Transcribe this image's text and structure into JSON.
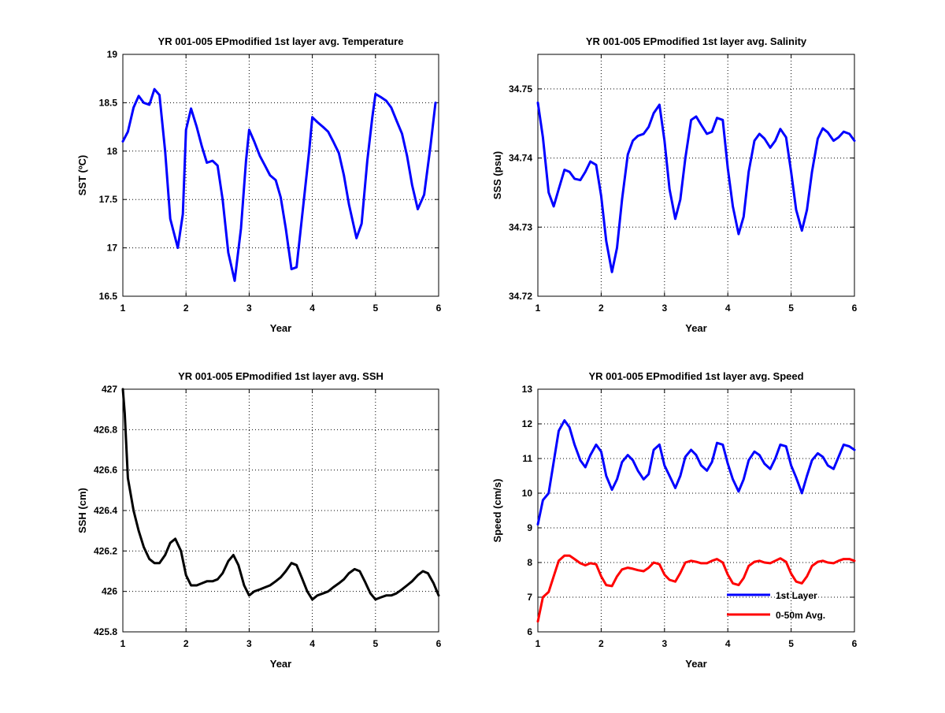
{
  "chart_data": [
    {
      "type": "line",
      "title": "YR 001-005 EPmodified 1st layer avg. Temperature",
      "xlabel": "Year",
      "ylabel": "SST (ºC)",
      "xlim": [
        1,
        6
      ],
      "ylim": [
        16.5,
        19
      ],
      "xticks": [
        "1",
        "2",
        "3",
        "4",
        "5",
        "6"
      ],
      "yticks": [
        "16.5",
        "17",
        "17.5",
        "18",
        "18.5",
        "19"
      ],
      "grid": true,
      "colors": {
        "series": "#0000ff"
      },
      "series": [
        {
          "name": "",
          "x": [
            1.0,
            1.08,
            1.17,
            1.25,
            1.33,
            1.42,
            1.5,
            1.58,
            1.67,
            1.75,
            1.87,
            1.95,
            2.0,
            2.08,
            2.17,
            2.25,
            2.33,
            2.42,
            2.5,
            2.58,
            2.67,
            2.77,
            2.87,
            2.95,
            3.0,
            3.08,
            3.17,
            3.25,
            3.33,
            3.42,
            3.5,
            3.58,
            3.67,
            3.75,
            3.85,
            3.95,
            4.0,
            4.08,
            4.17,
            4.25,
            4.33,
            4.42,
            4.5,
            4.58,
            4.7,
            4.78,
            4.87,
            4.95,
            5.0,
            5.08,
            5.17,
            5.25,
            5.33,
            5.42,
            5.5,
            5.58,
            5.67,
            5.77,
            5.87,
            5.95
          ],
          "values": [
            18.1,
            18.2,
            18.45,
            18.57,
            18.5,
            18.48,
            18.64,
            18.58,
            18.0,
            17.3,
            17.0,
            17.35,
            18.22,
            18.44,
            18.25,
            18.05,
            17.88,
            17.9,
            17.85,
            17.5,
            16.95,
            16.66,
            17.2,
            17.9,
            18.22,
            18.1,
            17.95,
            17.85,
            17.75,
            17.7,
            17.52,
            17.2,
            16.78,
            16.8,
            17.4,
            18.0,
            18.35,
            18.3,
            18.25,
            18.2,
            18.1,
            17.98,
            17.75,
            17.45,
            17.1,
            17.25,
            17.9,
            18.35,
            18.59,
            18.56,
            18.52,
            18.45,
            18.32,
            18.18,
            17.95,
            17.65,
            17.4,
            17.55,
            18.05,
            18.5
          ]
        }
      ]
    },
    {
      "type": "line",
      "title": "YR 001-005 EPmodified 1st layer avg. Salinity",
      "xlabel": "Year",
      "ylabel": "SSS (psu)",
      "xlim": [
        1,
        6
      ],
      "ylim": [
        34.72,
        34.755
      ],
      "xticks": [
        "1",
        "2",
        "3",
        "4",
        "5",
        "6"
      ],
      "yticks": [
        "34.72",
        "34.73",
        "34.74",
        "34.75"
      ],
      "grid": true,
      "colors": {
        "series": "#0000ff"
      },
      "series": [
        {
          "name": "",
          "x": [
            1.0,
            1.08,
            1.17,
            1.25,
            1.33,
            1.42,
            1.5,
            1.58,
            1.67,
            1.75,
            1.83,
            1.92,
            2.0,
            2.08,
            2.17,
            2.25,
            2.33,
            2.42,
            2.5,
            2.58,
            2.67,
            2.75,
            2.83,
            2.92,
            3.0,
            3.08,
            3.17,
            3.25,
            3.33,
            3.42,
            3.5,
            3.58,
            3.67,
            3.75,
            3.83,
            3.92,
            4.0,
            4.08,
            4.17,
            4.25,
            4.33,
            4.42,
            4.5,
            4.58,
            4.67,
            4.75,
            4.83,
            4.92,
            5.0,
            5.08,
            5.17,
            5.25,
            5.33,
            5.42,
            5.5,
            5.58,
            5.67,
            5.75,
            5.83,
            5.92,
            6.0
          ],
          "values": [
            34.748,
            34.743,
            34.735,
            34.733,
            34.7355,
            34.7383,
            34.738,
            34.737,
            34.7368,
            34.738,
            34.7395,
            34.739,
            34.7345,
            34.728,
            34.7235,
            34.727,
            34.734,
            34.7405,
            34.7425,
            34.7432,
            34.7435,
            34.7445,
            34.7465,
            34.7477,
            34.7425,
            34.7355,
            34.7312,
            34.734,
            34.74,
            34.7455,
            34.746,
            34.7448,
            34.7435,
            34.7438,
            34.7458,
            34.7455,
            34.7385,
            34.733,
            34.729,
            34.7315,
            34.738,
            34.7425,
            34.7435,
            34.7428,
            34.7415,
            34.7425,
            34.7442,
            34.743,
            34.738,
            34.7325,
            34.7295,
            34.7325,
            34.738,
            34.7428,
            34.7443,
            34.7437,
            34.7425,
            34.743,
            34.7438,
            34.7435,
            34.7425
          ]
        }
      ]
    },
    {
      "type": "line",
      "title": "YR 001-005 EPmodified 1st layer avg. SSH",
      "xlabel": "Year",
      "ylabel": "SSH (cm)",
      "xlim": [
        1,
        6
      ],
      "ylim": [
        425.8,
        427
      ],
      "xticks": [
        "1",
        "2",
        "3",
        "4",
        "5",
        "6"
      ],
      "yticks": [
        "425.8",
        "426",
        "426.2",
        "426.4",
        "426.6",
        "426.8",
        "427"
      ],
      "grid": true,
      "colors": {
        "series": "#000000"
      },
      "series": [
        {
          "name": "",
          "x": [
            1.0,
            1.03,
            1.08,
            1.17,
            1.25,
            1.33,
            1.42,
            1.5,
            1.58,
            1.67,
            1.75,
            1.83,
            1.92,
            2.0,
            2.08,
            2.17,
            2.25,
            2.33,
            2.42,
            2.5,
            2.58,
            2.67,
            2.75,
            2.83,
            2.92,
            3.0,
            3.08,
            3.17,
            3.25,
            3.33,
            3.42,
            3.5,
            3.58,
            3.67,
            3.75,
            3.83,
            3.92,
            4.0,
            4.08,
            4.17,
            4.25,
            4.33,
            4.42,
            4.5,
            4.58,
            4.67,
            4.75,
            4.83,
            4.92,
            5.0,
            5.08,
            5.17,
            5.25,
            5.33,
            5.42,
            5.5,
            5.58,
            5.67,
            5.75,
            5.83,
            5.92,
            6.0
          ],
          "values": [
            427.0,
            426.88,
            426.56,
            426.4,
            426.3,
            426.22,
            426.16,
            426.14,
            426.14,
            426.18,
            426.24,
            426.26,
            426.2,
            426.08,
            426.03,
            426.03,
            426.04,
            426.05,
            426.05,
            426.06,
            426.09,
            426.15,
            426.18,
            426.13,
            426.03,
            425.98,
            426.0,
            426.01,
            426.02,
            426.03,
            426.05,
            426.07,
            426.1,
            426.14,
            426.13,
            426.07,
            426.0,
            425.96,
            425.98,
            425.99,
            426.0,
            426.02,
            426.04,
            426.06,
            426.09,
            426.11,
            426.1,
            426.05,
            425.99,
            425.96,
            425.97,
            425.98,
            425.98,
            425.99,
            426.01,
            426.03,
            426.05,
            426.08,
            426.1,
            426.09,
            426.04,
            425.98
          ]
        }
      ]
    },
    {
      "type": "line",
      "title": "YR 001-005 EPmodified 1st layer avg. Speed",
      "xlabel": "Year",
      "ylabel": "Speed (cm/s)",
      "xlim": [
        1,
        6
      ],
      "ylim": [
        6,
        13
      ],
      "xticks": [
        "1",
        "2",
        "3",
        "4",
        "5",
        "6"
      ],
      "yticks": [
        "6",
        "7",
        "8",
        "9",
        "10",
        "11",
        "12",
        "13"
      ],
      "grid": true,
      "legend": {
        "position": "bottom-right"
      },
      "series": [
        {
          "name": "1st Layer",
          "color": "#0000ff",
          "x": [
            1.0,
            1.08,
            1.17,
            1.25,
            1.33,
            1.42,
            1.5,
            1.58,
            1.67,
            1.75,
            1.83,
            1.92,
            2.0,
            2.08,
            2.17,
            2.25,
            2.33,
            2.42,
            2.5,
            2.58,
            2.67,
            2.75,
            2.83,
            2.92,
            3.0,
            3.08,
            3.17,
            3.25,
            3.33,
            3.42,
            3.5,
            3.58,
            3.67,
            3.75,
            3.83,
            3.92,
            4.0,
            4.08,
            4.17,
            4.25,
            4.33,
            4.42,
            4.5,
            4.58,
            4.67,
            4.75,
            4.83,
            4.92,
            5.0,
            5.08,
            5.17,
            5.25,
            5.33,
            5.42,
            5.5,
            5.58,
            5.67,
            5.75,
            5.83,
            5.92,
            6.0
          ],
          "values": [
            9.1,
            9.8,
            10.0,
            10.9,
            11.8,
            12.1,
            11.9,
            11.4,
            10.95,
            10.75,
            11.1,
            11.4,
            11.2,
            10.5,
            10.1,
            10.4,
            10.9,
            11.1,
            10.95,
            10.65,
            10.4,
            10.55,
            11.25,
            11.4,
            10.8,
            10.5,
            10.15,
            10.5,
            11.05,
            11.25,
            11.1,
            10.8,
            10.65,
            10.9,
            11.45,
            11.4,
            10.85,
            10.4,
            10.05,
            10.4,
            10.95,
            11.2,
            11.1,
            10.85,
            10.7,
            11.0,
            11.4,
            11.35,
            10.8,
            10.45,
            10.0,
            10.5,
            10.95,
            11.15,
            11.05,
            10.8,
            10.7,
            11.05,
            11.4,
            11.35,
            11.25
          ]
        },
        {
          "name": "0-50m Avg.",
          "color": "#ff0000",
          "x": [
            1.0,
            1.08,
            1.17,
            1.25,
            1.33,
            1.42,
            1.5,
            1.58,
            1.67,
            1.75,
            1.83,
            1.92,
            2.0,
            2.08,
            2.17,
            2.25,
            2.33,
            2.42,
            2.5,
            2.58,
            2.67,
            2.75,
            2.83,
            2.92,
            3.0,
            3.08,
            3.17,
            3.25,
            3.33,
            3.42,
            3.5,
            3.58,
            3.67,
            3.75,
            3.83,
            3.92,
            4.0,
            4.08,
            4.17,
            4.25,
            4.33,
            4.42,
            4.5,
            4.58,
            4.67,
            4.75,
            4.83,
            4.92,
            5.0,
            5.08,
            5.17,
            5.25,
            5.33,
            5.42,
            5.5,
            5.58,
            5.67,
            5.75,
            5.83,
            5.92,
            6.0
          ],
          "values": [
            6.3,
            7.0,
            7.15,
            7.6,
            8.05,
            8.2,
            8.2,
            8.1,
            7.98,
            7.92,
            7.98,
            7.95,
            7.6,
            7.35,
            7.32,
            7.6,
            7.8,
            7.85,
            7.82,
            7.78,
            7.75,
            7.85,
            8.0,
            7.95,
            7.65,
            7.5,
            7.45,
            7.7,
            8.0,
            8.05,
            8.02,
            7.98,
            7.98,
            8.05,
            8.1,
            8.0,
            7.65,
            7.4,
            7.35,
            7.55,
            7.9,
            8.02,
            8.05,
            8.0,
            7.98,
            8.05,
            8.12,
            8.02,
            7.68,
            7.45,
            7.4,
            7.6,
            7.9,
            8.02,
            8.05,
            8.0,
            7.98,
            8.05,
            8.1,
            8.1,
            8.05
          ]
        }
      ]
    }
  ]
}
